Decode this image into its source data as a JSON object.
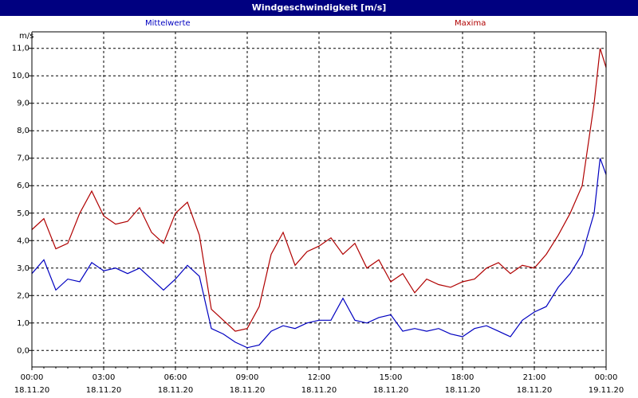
{
  "title": "Windgeschwindigkeit [m/s]",
  "colors": {
    "mittelwerte": "#0000c0",
    "maxima": "#b00000",
    "titlebar": "#000080"
  },
  "chart_data": {
    "type": "line",
    "title": "Windgeschwindigkeit [m/s]",
    "ylabel": "m/s",
    "xlabel": "",
    "ylim": [
      -0.6,
      11.6
    ],
    "y_ticks": [
      "0,0",
      "1,0",
      "2,0",
      "3,0",
      "4,0",
      "5,0",
      "6,0",
      "7,0",
      "8,0",
      "9,0",
      "10,0",
      "11,0"
    ],
    "x_ticks": [
      {
        "time": "00:00",
        "date": "18.11.20"
      },
      {
        "time": "03:00",
        "date": "18.11.20"
      },
      {
        "time": "06:00",
        "date": "18.11.20"
      },
      {
        "time": "09:00",
        "date": "18.11.20"
      },
      {
        "time": "12:00",
        "date": "18.11.20"
      },
      {
        "time": "15:00",
        "date": "18.11.20"
      },
      {
        "time": "18:00",
        "date": "18.11.20"
      },
      {
        "time": "21:00",
        "date": "18.11.20"
      },
      {
        "time": "00:00",
        "date": "19.11.20"
      }
    ],
    "grid": true,
    "legend_placement": "top",
    "series": [
      {
        "name": "Mittelwerte",
        "x": [
          "00:00",
          "00:30",
          "01:00",
          "01:30",
          "02:00",
          "02:30",
          "03:00",
          "03:30",
          "04:00",
          "04:30",
          "05:00",
          "05:30",
          "06:00",
          "06:30",
          "07:00",
          "07:30",
          "08:00",
          "08:30",
          "09:00",
          "09:30",
          "10:00",
          "10:30",
          "11:00",
          "11:30",
          "12:00",
          "12:30",
          "13:00",
          "13:30",
          "14:00",
          "14:30",
          "15:00",
          "15:30",
          "16:00",
          "16:30",
          "17:00",
          "17:30",
          "18:00",
          "18:30",
          "19:00",
          "19:30",
          "20:00",
          "20:30",
          "21:00",
          "21:30",
          "22:00",
          "22:30",
          "23:00",
          "23:30",
          "23:45",
          "24:00"
        ],
        "values": [
          2.8,
          3.3,
          2.2,
          2.6,
          2.5,
          3.2,
          2.9,
          3.0,
          2.8,
          3.0,
          2.6,
          2.2,
          2.6,
          3.1,
          2.7,
          0.8,
          0.6,
          0.3,
          0.1,
          0.2,
          0.7,
          0.9,
          0.8,
          1.0,
          1.1,
          1.1,
          1.9,
          1.1,
          1.0,
          1.2,
          1.3,
          0.7,
          0.8,
          0.7,
          0.8,
          0.6,
          0.5,
          0.8,
          0.9,
          0.7,
          0.5,
          1.1,
          1.4,
          1.6,
          2.3,
          2.8,
          3.5,
          5.0,
          7.0,
          6.4
        ]
      },
      {
        "name": "Maxima",
        "x": [
          "00:00",
          "00:30",
          "01:00",
          "01:30",
          "02:00",
          "02:30",
          "03:00",
          "03:30",
          "04:00",
          "04:30",
          "05:00",
          "05:30",
          "06:00",
          "06:30",
          "07:00",
          "07:30",
          "08:00",
          "08:30",
          "09:00",
          "09:30",
          "10:00",
          "10:30",
          "11:00",
          "11:30",
          "12:00",
          "12:30",
          "13:00",
          "13:30",
          "14:00",
          "14:30",
          "15:00",
          "15:30",
          "16:00",
          "16:30",
          "17:00",
          "17:30",
          "18:00",
          "18:30",
          "19:00",
          "19:30",
          "20:00",
          "20:30",
          "21:00",
          "21:30",
          "22:00",
          "22:30",
          "23:00",
          "23:30",
          "23:45",
          "24:00"
        ],
        "values": [
          4.4,
          4.8,
          3.7,
          3.9,
          5.0,
          5.8,
          4.9,
          4.6,
          4.7,
          5.2,
          4.3,
          3.9,
          5.0,
          5.4,
          4.2,
          1.5,
          1.1,
          0.7,
          0.8,
          1.6,
          3.5,
          4.3,
          3.1,
          3.6,
          3.8,
          4.1,
          3.5,
          3.9,
          3.0,
          3.3,
          2.5,
          2.8,
          2.1,
          2.6,
          2.4,
          2.3,
          2.5,
          2.6,
          3.0,
          3.2,
          2.8,
          3.1,
          3.0,
          3.5,
          4.2,
          5.0,
          6.0,
          9.0,
          11.0,
          10.3
        ]
      }
    ]
  }
}
